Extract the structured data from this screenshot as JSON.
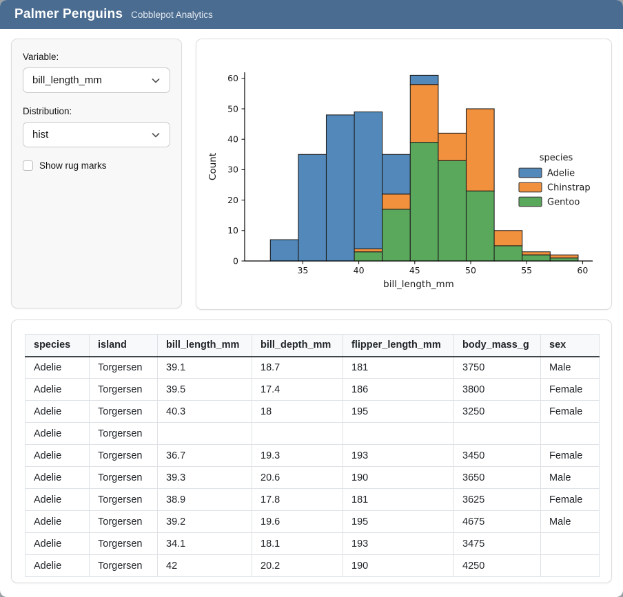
{
  "header": {
    "title": "Palmer Penguins",
    "subtitle": "Cobblepot Analytics"
  },
  "sidebar": {
    "variable_label": "Variable:",
    "variable_value": "bill_length_mm",
    "distribution_label": "Distribution:",
    "distribution_value": "hist",
    "rug_label": "Show rug marks",
    "rug_checked": false
  },
  "chart_data": {
    "type": "bar",
    "subtype": "stacked-histogram",
    "title": "",
    "xlabel": "bill_length_mm",
    "ylabel": "Count",
    "bin_edges": [
      32.1,
      34.6,
      37.1,
      39.6,
      42.1,
      44.6,
      47.1,
      49.6,
      52.1,
      54.6,
      57.1,
      59.6
    ],
    "series": [
      {
        "name": "Gentoo",
        "color": "#5aa85c",
        "values": [
          0,
          0,
          0,
          3,
          17,
          39,
          33,
          23,
          5,
          2,
          1
        ]
      },
      {
        "name": "Chinstrap",
        "color": "#f2913d",
        "values": [
          0,
          0,
          0,
          1,
          5,
          19,
          9,
          27,
          5,
          1,
          1
        ]
      },
      {
        "name": "Adelie",
        "color": "#5289ba",
        "values": [
          7,
          35,
          48,
          45,
          13,
          3,
          0,
          0,
          0,
          0,
          0
        ]
      }
    ],
    "bar_totals": [
      7,
      35,
      48,
      49,
      35,
      61,
      42,
      50,
      10,
      3,
      2
    ],
    "x_ticks": [
      35,
      40,
      45,
      50,
      55,
      60
    ],
    "y_ticks": [
      0,
      10,
      20,
      30,
      40,
      50,
      60
    ],
    "xlim": [
      29.8,
      60.9
    ],
    "ylim": [
      0,
      62
    ],
    "grid": false,
    "legend": {
      "title": "species",
      "position": "right",
      "entries": [
        {
          "label": "Adelie",
          "color": "#5289ba"
        },
        {
          "label": "Chinstrap",
          "color": "#f2913d"
        },
        {
          "label": "Gentoo",
          "color": "#5aa85c"
        }
      ]
    },
    "edge_color": "#1f1f1f"
  },
  "table": {
    "columns": [
      "species",
      "island",
      "bill_length_mm",
      "bill_depth_mm",
      "flipper_length_mm",
      "body_mass_g",
      "sex"
    ],
    "rows": [
      [
        "Adelie",
        "Torgersen",
        "39.1",
        "18.7",
        "181",
        "3750",
        "Male"
      ],
      [
        "Adelie",
        "Torgersen",
        "39.5",
        "17.4",
        "186",
        "3800",
        "Female"
      ],
      [
        "Adelie",
        "Torgersen",
        "40.3",
        "18",
        "195",
        "3250",
        "Female"
      ],
      [
        "Adelie",
        "Torgersen",
        "",
        "",
        "",
        "",
        ""
      ],
      [
        "Adelie",
        "Torgersen",
        "36.7",
        "19.3",
        "193",
        "3450",
        "Female"
      ],
      [
        "Adelie",
        "Torgersen",
        "39.3",
        "20.6",
        "190",
        "3650",
        "Male"
      ],
      [
        "Adelie",
        "Torgersen",
        "38.9",
        "17.8",
        "181",
        "3625",
        "Female"
      ],
      [
        "Adelie",
        "Torgersen",
        "39.2",
        "19.6",
        "195",
        "4675",
        "Male"
      ],
      [
        "Adelie",
        "Torgersen",
        "34.1",
        "18.1",
        "193",
        "3475",
        ""
      ],
      [
        "Adelie",
        "Torgersen",
        "42",
        "20.2",
        "190",
        "4250",
        ""
      ]
    ]
  },
  "colors": {
    "navbar": "#4a6c90",
    "card_border": "#dcdcdc",
    "table_border": "#dee2e6",
    "header_bg": "#f8f9fa"
  }
}
